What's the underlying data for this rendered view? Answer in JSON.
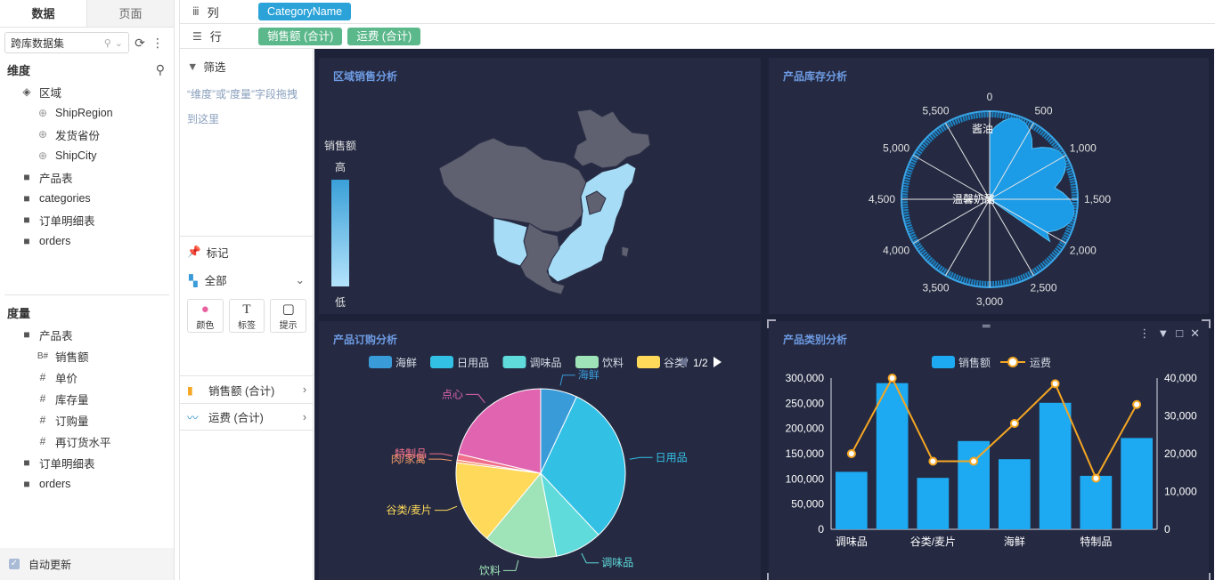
{
  "left_panel": {
    "tabs": [
      "数据",
      "页面"
    ],
    "dataset": "跨库数据集",
    "dimensions_title": "维度",
    "dimensions": [
      {
        "label": "区域",
        "icon": "layers-icon",
        "level": 0
      },
      {
        "label": "ShipRegion",
        "icon": "globe-icon",
        "level": 1
      },
      {
        "label": "发货省份",
        "icon": "globe-icon",
        "level": 1
      },
      {
        "label": "ShipCity",
        "icon": "globe-icon",
        "level": 1
      },
      {
        "label": "产品表",
        "icon": "folder-icon",
        "level": 0
      },
      {
        "label": "categories",
        "icon": "folder-icon",
        "level": 0
      },
      {
        "label": "订单明细表",
        "icon": "folder-icon",
        "level": 0
      },
      {
        "label": "orders",
        "icon": "folder-icon",
        "level": 0
      }
    ],
    "measures_title": "度量",
    "measures": [
      {
        "label": "产品表",
        "icon": "folder-icon",
        "level": 0,
        "glyph": "▭"
      },
      {
        "label": "销售额",
        "icon": "measure-b-icon",
        "level": 1,
        "glyph": "B#"
      },
      {
        "label": "单价",
        "icon": "hash-icon",
        "level": 1,
        "glyph": "#"
      },
      {
        "label": "库存量",
        "icon": "hash-icon",
        "level": 1,
        "glyph": "#"
      },
      {
        "label": "订购量",
        "icon": "hash-icon",
        "level": 1,
        "glyph": "#"
      },
      {
        "label": "再订货水平",
        "icon": "hash-icon",
        "level": 1,
        "glyph": "#"
      },
      {
        "label": "订单明细表",
        "icon": "folder-icon",
        "level": 0,
        "glyph": "▭"
      },
      {
        "label": "orders",
        "icon": "folder-icon",
        "level": 0,
        "glyph": "▭"
      }
    ],
    "auto_update": "自动更新"
  },
  "shelves": {
    "columns_label": "列",
    "columns_pills": [
      "CategoryName"
    ],
    "rows_label": "行",
    "rows_pills": [
      "销售额 (合计)",
      "运费 (合计)"
    ]
  },
  "mid_panel": {
    "filter_label": "筛选",
    "filter_hint": "“维度”或“度量”字段拖拽到这里",
    "marks_label": "标记",
    "marks_all": "全部",
    "mark_buttons": [
      "颜色",
      "标签",
      "提示"
    ],
    "measure_rows": [
      "销售额 (合计)",
      "运费 (合计)"
    ]
  },
  "cards": {
    "map": {
      "title": "区域销售分析",
      "legend_title": "销售额",
      "legend_high": "高",
      "legend_low": "低"
    },
    "polar": {
      "title": "产品库存分析",
      "ticks": [
        "0",
        "500",
        "1,000",
        "1,500",
        "2,000",
        "2,500",
        "3,000",
        "3,500",
        "4,000",
        "4,500",
        "5,000",
        "5,500"
      ],
      "labels": [
        "酱油",
        "温馨奶酪"
      ]
    },
    "pie": {
      "title": "产品订购分析",
      "legend": [
        {
          "name": "海鲜",
          "color": "#3a9bd9"
        },
        {
          "name": "日用品",
          "color": "#33c0e5"
        },
        {
          "name": "调味品",
          "color": "#5fdbdb"
        },
        {
          "name": "饮料",
          "color": "#9fe3b8"
        },
        {
          "name": "谷类/",
          "color": "#fed95a"
        }
      ],
      "pager": "1/2"
    },
    "combo": {
      "title": "产品类别分析",
      "legend_bar": "销售额",
      "legend_line": "运费"
    }
  },
  "chart_data": [
    {
      "type": "pie",
      "title": "产品订购分析",
      "slices": [
        {
          "name": "海鲜",
          "value": 7.0,
          "color": "#3a9bd9"
        },
        {
          "name": "日用品",
          "value": 31.0,
          "color": "#33c0e5"
        },
        {
          "name": "调味品",
          "value": 9.0,
          "color": "#5fdbdb"
        },
        {
          "name": "饮料",
          "value": 14.0,
          "color": "#9fe3b8"
        },
        {
          "name": "谷类/麦片",
          "value": 16.0,
          "color": "#fed95a"
        },
        {
          "name": "肉/家禽",
          "value": 0.5,
          "color": "#f49a6a"
        },
        {
          "name": "特制品",
          "value": 1.2,
          "color": "#f0708c"
        },
        {
          "name": "点心",
          "value": 21.3,
          "color": "#e064b0"
        }
      ]
    },
    {
      "type": "bar",
      "title": "产品类别分析",
      "categories": [
        "调味品",
        "",
        "谷类/麦片",
        "",
        "海鲜",
        "",
        "特制品",
        ""
      ],
      "series": [
        {
          "name": "销售额",
          "type": "bar",
          "axis": "left",
          "color": "#1daaf2",
          "values": [
            114000,
            290000,
            102000,
            175000,
            139000,
            251000,
            106000,
            181000
          ]
        },
        {
          "name": "运费",
          "type": "line",
          "axis": "right",
          "color": "#f5a623",
          "values": [
            20000,
            40000,
            18000,
            18000,
            28000,
            38500,
            13500,
            33000
          ]
        }
      ],
      "ylim_left": [
        0,
        300000
      ],
      "yticks_left": [
        "0",
        "50,000",
        "100,000",
        "150,000",
        "200,000",
        "250,000",
        "300,000"
      ],
      "ylim_right": [
        0,
        40000
      ],
      "yticks_right": [
        "0",
        "10,000",
        "20,000",
        "30,000",
        "40,000"
      ]
    }
  ]
}
